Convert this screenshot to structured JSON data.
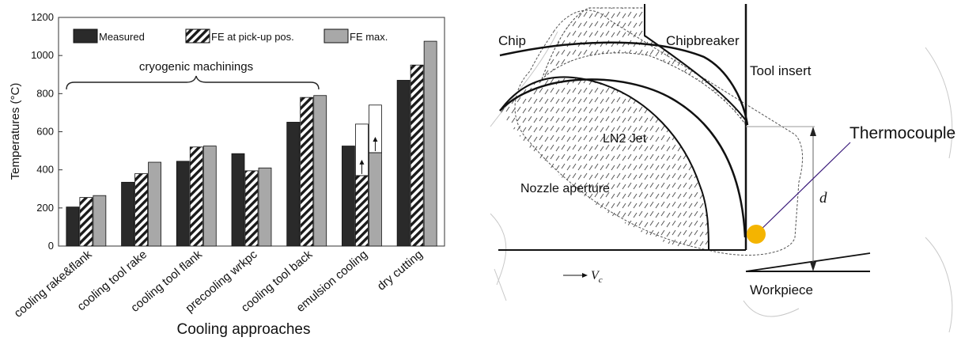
{
  "chart_data": {
    "type": "bar",
    "title": "",
    "xlabel": "Cooling approaches",
    "ylabel": "Temperatures (°C)",
    "ylim": [
      0,
      1200
    ],
    "yticks": [
      0,
      200,
      400,
      600,
      800,
      1000,
      1200
    ],
    "grid": false,
    "legend_position": "top",
    "categories": [
      "cooling rake&flank",
      "cooling tool rake",
      "cooling tool flank",
      "precooling wrkpc",
      "cooling tool back",
      "emulsion cooling",
      "dry cutting"
    ],
    "series": [
      {
        "name": "Measured",
        "values": [
          205,
          335,
          445,
          485,
          650,
          525,
          870
        ],
        "color": "#2a2a2a",
        "pattern": "solid"
      },
      {
        "name": "FE at pick-up pos.",
        "values": [
          255,
          380,
          520,
          395,
          780,
          370,
          950
        ],
        "color": "#ffffff",
        "pattern": "hatched"
      },
      {
        "name": "FE max.",
        "values": [
          265,
          440,
          525,
          410,
          790,
          490,
          1075
        ],
        "color": "#a8a8a8",
        "pattern": "solid"
      }
    ],
    "emulsion_range_boxes": [
      {
        "series": "FE at pick-up pos.",
        "from": 370,
        "to": 640
      },
      {
        "series": "FE max.",
        "from": 490,
        "to": 740
      }
    ],
    "annotations": [
      {
        "text": "cryogenic machinings",
        "spans_categories": [
          "cooling rake&flank",
          "cooling tool back"
        ]
      }
    ]
  },
  "diagram": {
    "labels": {
      "chip": "Chip",
      "chipbreaker": "Chipbreaker",
      "tool_insert": "Tool insert",
      "thermocouple": "Thermocouple",
      "ln2_jet": "LN2 Jet",
      "nozzle_aperture": "Nozzle aperture",
      "distance": "d",
      "velocity": "V",
      "velocity_sub": "c",
      "workpiece": "Workpiece"
    },
    "thermocouple_color": "#f4b400",
    "leader_color": "#3a1a7a"
  }
}
